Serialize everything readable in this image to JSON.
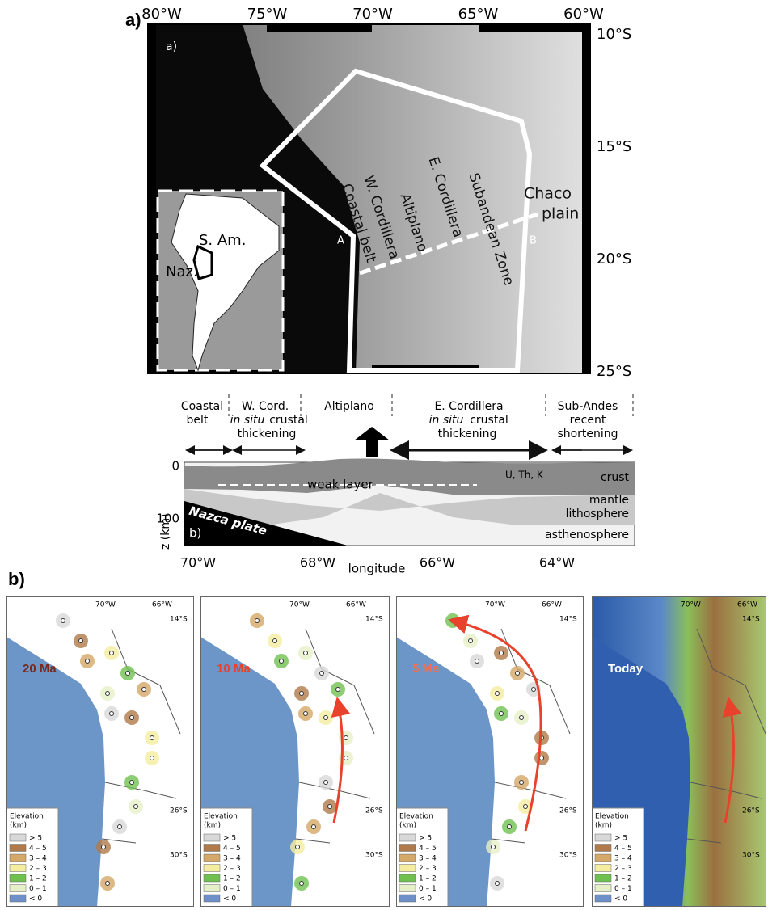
{
  "figure_a": {
    "label": "a)",
    "map": {
      "inner_label": "a)",
      "lon_labels": [
        "80°W",
        "75°W",
        "70°W",
        "65°W",
        "60°W"
      ],
      "lat_labels": [
        "10°S",
        "15°S",
        "20°S",
        "25°S"
      ],
      "inset": {
        "continent": "S. Am.",
        "plate": "Naz."
      },
      "regions": [
        "Coastal belt",
        "W. Cordillera",
        "Altiplano",
        "E. Cordillera",
        "Subandean Zone"
      ],
      "plain": [
        "Chaco",
        "plain"
      ],
      "profile": [
        "A",
        "B"
      ]
    },
    "section": {
      "coastal": [
        "Coastal",
        "belt"
      ],
      "wcord": "W. Cord.",
      "wcord_note": [
        "in situ",
        "crustal",
        "thickening"
      ],
      "altiplano": "Altiplano",
      "ecord": "E. Cordillera",
      "ecord_note": [
        "in situ",
        "crustal",
        "thickening"
      ],
      "subandes": "Sub-Andes",
      "subandes_note": [
        "recent",
        "shortening"
      ],
      "crust": "crust",
      "mantle": [
        "mantle",
        "lithosphere"
      ],
      "asthenosphere": "asthenosphere",
      "weak": "weak layer",
      "elements": "U, Th, K",
      "plate": "Nazca plate",
      "label": "b)",
      "depth_ticks": [
        "0",
        "100"
      ],
      "depth_axis": "z (km)",
      "lon_ticks": [
        "70°W",
        "68°W",
        "66°W",
        "64°W"
      ],
      "lon_axis": "longitude"
    }
  },
  "figure_b": {
    "label": "b)",
    "lon_labels": [
      "70°W",
      "66°W"
    ],
    "lat_labels": [
      "14°S",
      "26°S",
      "30°S"
    ],
    "maps": [
      {
        "age": "20 Ma",
        "color": "#7a2a1a"
      },
      {
        "age": "10 Ma",
        "color": "#e8412c"
      },
      {
        "age": "5 Ma",
        "color": "#f07050"
      },
      {
        "age": "Today",
        "color": "#ffffff"
      }
    ],
    "legend": {
      "title": [
        "Elevation",
        "(km)"
      ],
      "classes": [
        {
          "label": "> 5",
          "color": "#d8d8d8"
        },
        {
          "label": "4 – 5",
          "color": "#b07a4a"
        },
        {
          "label": "3 – 4",
          "color": "#d4a868"
        },
        {
          "label": "2 – 3",
          "color": "#f4eda0"
        },
        {
          "label": "1 – 2",
          "color": "#70c050"
        },
        {
          "label": "0 – 1",
          "color": "#e6f0c8"
        },
        {
          "label": "< 0",
          "color": "#6f8fc8"
        }
      ]
    }
  }
}
